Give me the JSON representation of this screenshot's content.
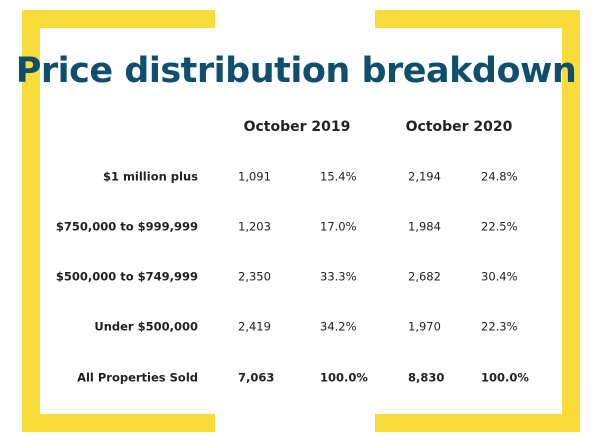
{
  "title": "Price distribution breakdown",
  "table": {
    "column_groups": [
      "October 2019",
      "October 2020"
    ],
    "rows": [
      [
        "$1 million plus",
        "1,091",
        "15.4%",
        "2,194",
        "24.8%"
      ],
      [
        "$750,000 to $999,999",
        "1,203",
        "17.0%",
        "1,984",
        "22.5%"
      ],
      [
        "$500,000 to $749,999",
        "2,350",
        "33.3%",
        "2,682",
        "30.4%"
      ],
      [
        "Under $500,000",
        "2,419",
        "34.2%",
        "1,970",
        "22.3%"
      ],
      [
        "All Properties Sold",
        "7,063",
        "100.0%",
        "8,830",
        "100.0%"
      ]
    ]
  }
}
